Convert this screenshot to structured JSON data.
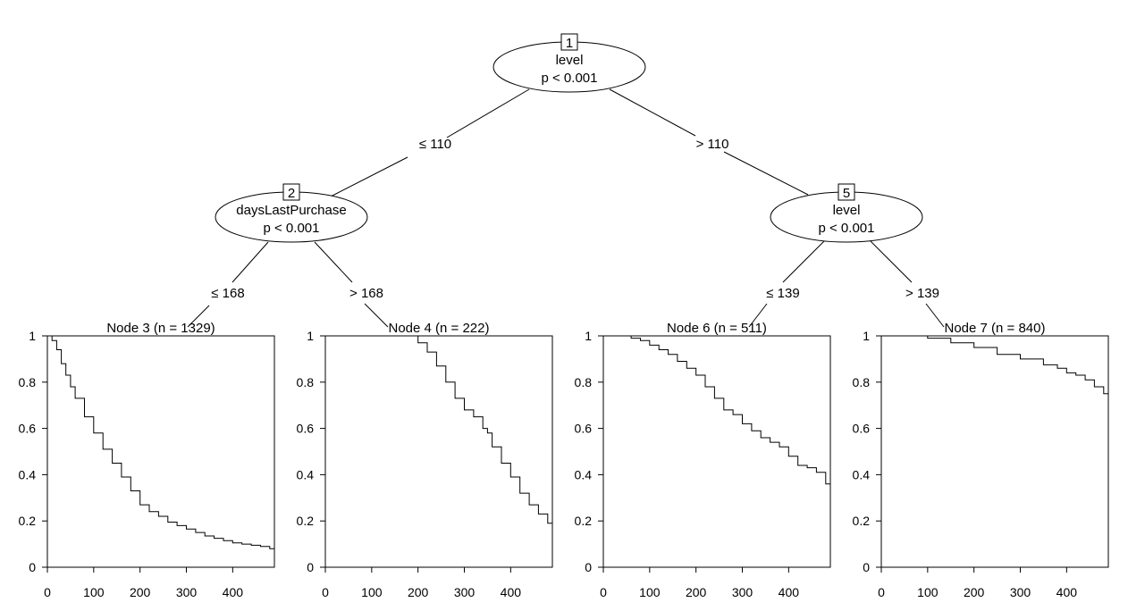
{
  "tree": {
    "inner_nodes": [
      {
        "id": "1",
        "variable": "level",
        "pvalue": "p < 0.001"
      },
      {
        "id": "2",
        "variable": "daysLastPurchase",
        "pvalue": "p < 0.001"
      },
      {
        "id": "5",
        "variable": "level",
        "pvalue": "p < 0.001"
      }
    ],
    "edges": [
      {
        "from": "1",
        "to": "2",
        "label": "≤ 110"
      },
      {
        "from": "1",
        "to": "5",
        "label": "> 110"
      },
      {
        "from": "2",
        "to": "3",
        "label": "≤ 168"
      },
      {
        "from": "2",
        "to": "4",
        "label": "> 168"
      },
      {
        "from": "5",
        "to": "6",
        "label": "≤ 139"
      },
      {
        "from": "5",
        "to": "7",
        "label": "> 139"
      }
    ]
  },
  "chart_data": [
    {
      "type": "line",
      "title": "Node 3 (n = 1329)",
      "xlim": [
        0,
        490
      ],
      "ylim": [
        0,
        1
      ],
      "xticks": [
        "0",
        "100",
        "200",
        "300",
        "400"
      ],
      "yticks": [
        "0",
        "0.2",
        "0.4",
        "0.6",
        "0.8",
        "1"
      ],
      "x": [
        0,
        10,
        20,
        30,
        40,
        50,
        60,
        80,
        100,
        120,
        140,
        160,
        180,
        200,
        220,
        240,
        260,
        280,
        300,
        320,
        340,
        360,
        380,
        400,
        420,
        440,
        460,
        480,
        490
      ],
      "y": [
        1.0,
        0.98,
        0.94,
        0.88,
        0.83,
        0.78,
        0.73,
        0.65,
        0.58,
        0.51,
        0.45,
        0.39,
        0.33,
        0.27,
        0.24,
        0.22,
        0.195,
        0.18,
        0.165,
        0.15,
        0.135,
        0.125,
        0.115,
        0.105,
        0.1,
        0.095,
        0.09,
        0.08,
        0.075
      ]
    },
    {
      "type": "line",
      "title": "Node 4 (n = 222)",
      "xlim": [
        0,
        490
      ],
      "ylim": [
        0,
        1
      ],
      "xticks": [
        "0",
        "100",
        "200",
        "300",
        "400"
      ],
      "yticks": [
        "0",
        "0.2",
        "0.4",
        "0.6",
        "0.8",
        "1"
      ],
      "x": [
        0,
        100,
        180,
        200,
        220,
        240,
        260,
        280,
        300,
        320,
        340,
        350,
        360,
        380,
        400,
        420,
        440,
        460,
        480,
        490
      ],
      "y": [
        1.0,
        1.0,
        1.0,
        0.97,
        0.93,
        0.87,
        0.8,
        0.73,
        0.68,
        0.65,
        0.6,
        0.58,
        0.52,
        0.45,
        0.39,
        0.32,
        0.27,
        0.23,
        0.19,
        0.19
      ]
    },
    {
      "type": "line",
      "title": "Node 6 (n = 511)",
      "xlim": [
        0,
        490
      ],
      "ylim": [
        0,
        1
      ],
      "xticks": [
        "0",
        "100",
        "200",
        "300",
        "400"
      ],
      "yticks": [
        "0",
        "0.2",
        "0.4",
        "0.6",
        "0.8",
        "1"
      ],
      "x": [
        0,
        40,
        60,
        80,
        100,
        120,
        140,
        160,
        180,
        200,
        220,
        240,
        260,
        280,
        300,
        320,
        340,
        360,
        380,
        400,
        420,
        440,
        460,
        480,
        490
      ],
      "y": [
        1.0,
        1.0,
        0.99,
        0.98,
        0.96,
        0.94,
        0.92,
        0.89,
        0.86,
        0.83,
        0.78,
        0.73,
        0.68,
        0.66,
        0.62,
        0.59,
        0.56,
        0.54,
        0.52,
        0.48,
        0.44,
        0.43,
        0.41,
        0.36,
        0.36
      ]
    },
    {
      "type": "line",
      "title": "Node 7 (n = 840)",
      "xlim": [
        0,
        490
      ],
      "ylim": [
        0,
        1
      ],
      "xticks": [
        "0",
        "100",
        "200",
        "300",
        "400"
      ],
      "yticks": [
        "0",
        "0.2",
        "0.4",
        "0.6",
        "0.8",
        "1"
      ],
      "x": [
        0,
        50,
        100,
        150,
        200,
        250,
        300,
        350,
        380,
        400,
        420,
        440,
        460,
        480,
        490
      ],
      "y": [
        1.0,
        1.0,
        0.99,
        0.97,
        0.95,
        0.92,
        0.9,
        0.875,
        0.86,
        0.84,
        0.83,
        0.81,
        0.78,
        0.75,
        0.75
      ]
    }
  ]
}
